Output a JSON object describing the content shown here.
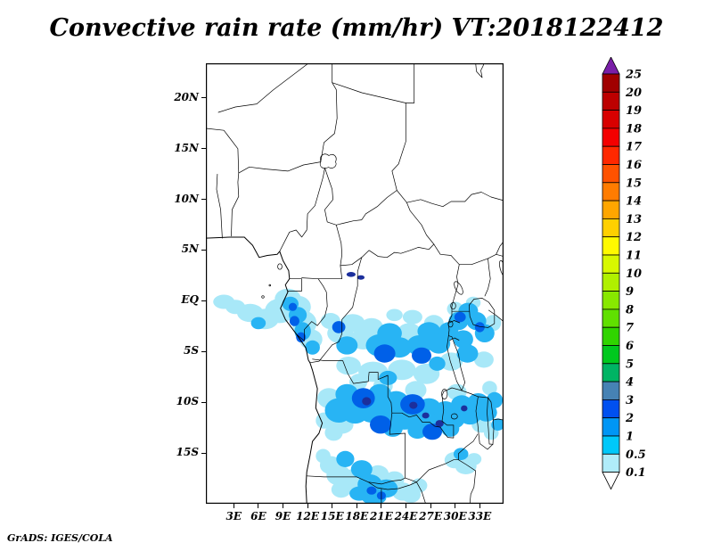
{
  "title": "Convective rain rate (mm/hr) VT:2018122412",
  "footer": "GrADS: IGES/COLA",
  "chart_data": {
    "type": "heatmap",
    "title": "Convective rain rate (mm/hr) VT:2018122412",
    "variable": "Convective rain rate",
    "units": "mm/hr",
    "valid_time_label": "VT:2018122412",
    "region": "Central Africa",
    "map_extent": {
      "lon_min": -0.4,
      "lon_max": 35.9,
      "lat_min": -20.0,
      "lat_max": 23.4
    },
    "x_ticks": [
      {
        "label": "3E",
        "lon": 3
      },
      {
        "label": "6E",
        "lon": 6
      },
      {
        "label": "9E",
        "lon": 9
      },
      {
        "label": "12E",
        "lon": 12
      },
      {
        "label": "15E",
        "lon": 15
      },
      {
        "label": "18E",
        "lon": 18
      },
      {
        "label": "21E",
        "lon": 21
      },
      {
        "label": "24E",
        "lon": 24
      },
      {
        "label": "27E",
        "lon": 27
      },
      {
        "label": "30E",
        "lon": 30
      },
      {
        "label": "33E",
        "lon": 33
      }
    ],
    "y_ticks": [
      {
        "label": "20N",
        "lat": 20
      },
      {
        "label": "15N",
        "lat": 15
      },
      {
        "label": "10N",
        "lat": 10
      },
      {
        "label": "5N",
        "lat": 5
      },
      {
        "label": "EQ",
        "lat": 0
      },
      {
        "label": "5S",
        "lat": -5
      },
      {
        "label": "10S",
        "lat": -10
      },
      {
        "label": "15S",
        "lat": -15
      }
    ],
    "colorbar": {
      "labels": [
        "25",
        "20",
        "19",
        "18",
        "17",
        "16",
        "15",
        "14",
        "13",
        "12",
        "11",
        "10",
        "9",
        "8",
        "7",
        "6",
        "5",
        "4",
        "3",
        "2",
        "1",
        "0.5",
        "0.1"
      ],
      "segment_colors_top_to_bottom": [
        "#a00000",
        "#bc0000",
        "#d80000",
        "#f40000",
        "#ff2800",
        "#ff5200",
        "#ff7c00",
        "#ffa600",
        "#ffd000",
        "#fffa00",
        "#d8f800",
        "#b0f000",
        "#88e800",
        "#60e000",
        "#30d400",
        "#00c81e",
        "#00b464",
        "#4682b4",
        "#0050f0",
        "#0096f5",
        "#00c8fa",
        "#b0ecfa"
      ],
      "above_max_color": "#7a1fa8",
      "below_min_color": "#ffffff"
    },
    "shading_colors": [
      "#a8e8f8",
      "#28b4f4",
      "#0060e8",
      "#1c2f9c"
    ],
    "shading_levels_mmhr": [
      "0.1-0.5",
      "0.5-1",
      "1-2",
      "2-3"
    ],
    "rain_cells": [
      [
        1.8,
        -0.1,
        1.3,
        0.7,
        1
      ],
      [
        3.2,
        -0.6,
        1.2,
        0.7,
        1
      ],
      [
        5.0,
        -1.2,
        1.6,
        0.9,
        1
      ],
      [
        6.8,
        -1.8,
        1.7,
        1.0,
        1
      ],
      [
        8.6,
        -1.0,
        1.8,
        1.2,
        1
      ],
      [
        9.6,
        0.2,
        1.6,
        1.0,
        1
      ],
      [
        10.8,
        -0.6,
        1.6,
        1.1,
        1
      ],
      [
        11.6,
        -2.2,
        1.5,
        1.2,
        1
      ],
      [
        12.4,
        -3.8,
        1.4,
        1.0,
        1
      ],
      [
        9.9,
        -0.3,
        1.0,
        0.7,
        2
      ],
      [
        10.8,
        -1.4,
        1.1,
        0.8,
        2
      ],
      [
        11.4,
        -3.0,
        1.0,
        0.9,
        2
      ],
      [
        12.6,
        -4.6,
        0.9,
        0.7,
        2
      ],
      [
        6.0,
        -2.2,
        0.9,
        0.6,
        2
      ],
      [
        10.4,
        -2.0,
        0.6,
        0.5,
        3
      ],
      [
        11.2,
        -3.6,
        0.6,
        0.5,
        3
      ],
      [
        10.2,
        -0.6,
        0.5,
        0.4,
        3
      ],
      [
        17.3,
        2.6,
        0.55,
        0.25,
        4
      ],
      [
        18.5,
        2.3,
        0.45,
        0.22,
        4
      ],
      [
        14.8,
        -2.0,
        1.2,
        0.8,
        1
      ],
      [
        16.0,
        -3.2,
        1.6,
        1.0,
        1
      ],
      [
        17.5,
        -2.2,
        1.5,
        0.9,
        1
      ],
      [
        16.8,
        -4.4,
        1.3,
        0.9,
        2
      ],
      [
        15.8,
        -2.6,
        0.8,
        0.6,
        3
      ],
      [
        18.8,
        -3.8,
        1.6,
        1.0,
        1
      ],
      [
        19.8,
        -2.6,
        1.4,
        0.9,
        1
      ],
      [
        20.8,
        -4.4,
        1.7,
        1.1,
        2
      ],
      [
        22.0,
        -3.2,
        1.5,
        1.0,
        2
      ],
      [
        21.4,
        -5.2,
        1.3,
        0.9,
        3
      ],
      [
        23.2,
        -4.6,
        1.5,
        1.0,
        2
      ],
      [
        24.4,
        -3.2,
        1.5,
        1.0,
        1
      ],
      [
        25.6,
        -4.4,
        1.5,
        1.0,
        2
      ],
      [
        26.8,
        -3.0,
        1.4,
        0.9,
        2
      ],
      [
        25.9,
        -5.4,
        1.2,
        0.8,
        3
      ],
      [
        28.0,
        -4.2,
        1.4,
        1.0,
        2
      ],
      [
        27.4,
        -2.2,
        1.2,
        0.8,
        1
      ],
      [
        24.8,
        -1.6,
        1.2,
        0.7,
        1
      ],
      [
        22.6,
        -1.4,
        1.0,
        0.6,
        1
      ],
      [
        29.2,
        -3.0,
        1.2,
        0.9,
        2
      ],
      [
        30.4,
        -2.0,
        1.2,
        0.9,
        2
      ],
      [
        31.6,
        -1.0,
        1.2,
        0.8,
        2
      ],
      [
        30.0,
        -0.8,
        1.0,
        0.7,
        1
      ],
      [
        32.6,
        -2.0,
        1.2,
        0.9,
        2
      ],
      [
        33.6,
        -3.2,
        1.2,
        0.9,
        2
      ],
      [
        34.6,
        -2.2,
        1.0,
        0.8,
        1
      ],
      [
        31.0,
        -3.8,
        1.2,
        0.9,
        2
      ],
      [
        32.2,
        -0.2,
        0.9,
        0.6,
        1
      ],
      [
        30.6,
        -1.6,
        0.7,
        0.5,
        3
      ],
      [
        33.0,
        -2.6,
        0.6,
        0.5,
        3
      ],
      [
        17.0,
        -6.4,
        1.5,
        0.9,
        1
      ],
      [
        20.0,
        -7.0,
        1.8,
        1.0,
        1
      ],
      [
        23.5,
        -6.8,
        1.7,
        1.0,
        1
      ],
      [
        26.5,
        -7.2,
        1.6,
        1.0,
        1
      ],
      [
        29.5,
        -6.0,
        1.4,
        0.9,
        1
      ],
      [
        31.5,
        -5.2,
        1.3,
        0.9,
        2
      ],
      [
        33.5,
        -5.8,
        1.2,
        0.8,
        1
      ],
      [
        27.8,
        -6.2,
        1.0,
        0.7,
        2
      ],
      [
        21.8,
        -7.6,
        1.1,
        0.7,
        2
      ],
      [
        14.6,
        -9.6,
        1.4,
        1.0,
        1
      ],
      [
        15.8,
        -10.8,
        1.7,
        1.2,
        2
      ],
      [
        16.8,
        -9.2,
        1.4,
        1.0,
        2
      ],
      [
        17.8,
        -11.0,
        1.6,
        1.1,
        2
      ],
      [
        16.2,
        -12.2,
        1.4,
        0.9,
        1
      ],
      [
        18.8,
        -9.6,
        1.4,
        1.0,
        3
      ],
      [
        19.8,
        -10.8,
        1.7,
        1.2,
        2
      ],
      [
        20.8,
        -9.2,
        1.4,
        1.0,
        2
      ],
      [
        21.8,
        -11.2,
        1.7,
        1.2,
        2
      ],
      [
        20.9,
        -12.2,
        1.3,
        0.9,
        3
      ],
      [
        22.8,
        -9.9,
        1.5,
        1.0,
        2
      ],
      [
        23.8,
        -11.6,
        1.6,
        1.1,
        2
      ],
      [
        24.8,
        -10.2,
        1.5,
        1.0,
        3
      ],
      [
        25.8,
        -11.9,
        1.6,
        1.0,
        2
      ],
      [
        26.8,
        -10.6,
        1.5,
        1.0,
        2
      ],
      [
        27.8,
        -12.0,
        1.5,
        1.0,
        2
      ],
      [
        28.8,
        -10.9,
        1.4,
        1.0,
        2
      ],
      [
        27.2,
        -12.9,
        1.2,
        0.8,
        3
      ],
      [
        29.8,
        -11.6,
        1.4,
        1.0,
        2
      ],
      [
        30.8,
        -10.2,
        1.3,
        0.9,
        2
      ],
      [
        31.8,
        -11.2,
        1.4,
        1.0,
        2
      ],
      [
        32.8,
        -10.0,
        1.3,
        0.9,
        2
      ],
      [
        33.8,
        -11.0,
        1.3,
        0.9,
        2
      ],
      [
        34.8,
        -9.8,
        1.0,
        0.8,
        2
      ],
      [
        33.2,
        -12.2,
        1.2,
        0.8,
        1
      ],
      [
        34.2,
        -8.6,
        0.9,
        0.7,
        1
      ],
      [
        30.2,
        -9.0,
        1.2,
        0.8,
        1
      ],
      [
        25.2,
        -8.8,
        1.3,
        0.9,
        1
      ],
      [
        21.2,
        -8.4,
        1.2,
        0.8,
        1
      ],
      [
        18.2,
        -8.0,
        1.1,
        0.8,
        1
      ],
      [
        14.0,
        -11.8,
        1.0,
        0.8,
        1
      ],
      [
        15.2,
        -13.0,
        1.1,
        0.8,
        1
      ],
      [
        19.2,
        -9.9,
        0.55,
        0.4,
        4
      ],
      [
        24.9,
        -10.3,
        0.5,
        0.35,
        4
      ],
      [
        28.1,
        -12.1,
        0.5,
        0.35,
        4
      ],
      [
        26.4,
        -11.3,
        0.45,
        0.3,
        4
      ],
      [
        31.1,
        -10.6,
        0.4,
        0.3,
        4
      ],
      [
        22.4,
        -12.6,
        1.2,
        0.8,
        2
      ],
      [
        25.4,
        -12.8,
        1.2,
        0.8,
        2
      ],
      [
        29.4,
        -12.6,
        1.1,
        0.8,
        2
      ],
      [
        13.9,
        -15.3,
        0.9,
        0.7,
        1
      ],
      [
        14.8,
        -16.2,
        1.3,
        0.9,
        1
      ],
      [
        15.8,
        -17.2,
        1.5,
        1.0,
        1
      ],
      [
        16.6,
        -15.6,
        1.1,
        0.8,
        2
      ],
      [
        17.6,
        -17.6,
        1.6,
        1.0,
        1
      ],
      [
        18.6,
        -16.6,
        1.3,
        0.9,
        2
      ],
      [
        19.6,
        -18.1,
        1.5,
        1.0,
        2
      ],
      [
        20.6,
        -17.1,
        1.3,
        0.9,
        1
      ],
      [
        21.6,
        -18.5,
        1.4,
        0.9,
        2
      ],
      [
        22.6,
        -17.6,
        1.2,
        0.8,
        1
      ],
      [
        23.6,
        -18.8,
        1.3,
        0.9,
        1
      ],
      [
        20.1,
        -19.4,
        1.5,
        0.7,
        2
      ],
      [
        18.3,
        -19.0,
        1.2,
        0.7,
        2
      ],
      [
        16.1,
        -18.6,
        1.2,
        0.8,
        1
      ],
      [
        24.6,
        -19.1,
        1.2,
        0.8,
        1
      ],
      [
        25.6,
        -18.2,
        1.0,
        0.7,
        1
      ],
      [
        19.8,
        -18.7,
        0.6,
        0.4,
        3
      ],
      [
        21.0,
        -19.2,
        0.55,
        0.4,
        3
      ],
      [
        29.9,
        -15.7,
        1.2,
        0.8,
        1
      ],
      [
        31.3,
        -16.3,
        1.3,
        0.8,
        1
      ],
      [
        30.7,
        -15.1,
        0.9,
        0.6,
        2
      ],
      [
        32.3,
        -15.6,
        0.9,
        0.6,
        1
      ],
      [
        34.4,
        -13.0,
        0.9,
        0.7,
        1
      ],
      [
        35.2,
        -12.2,
        0.8,
        0.6,
        2
      ]
    ]
  }
}
